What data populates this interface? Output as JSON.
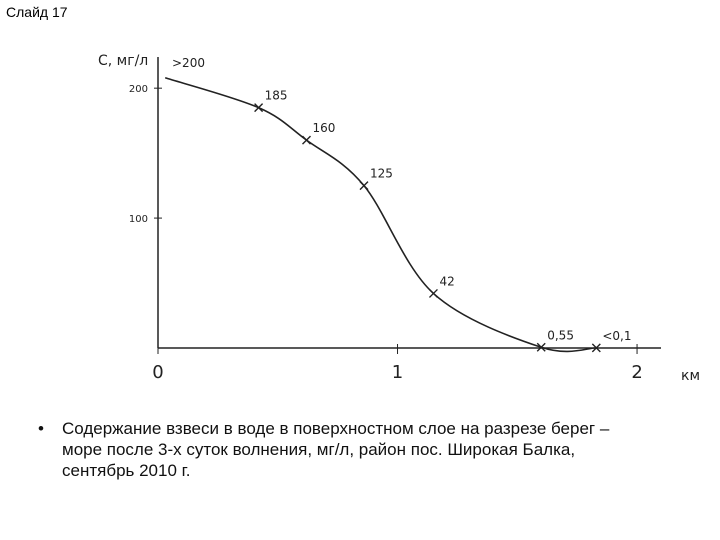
{
  "slide_title": "Слайд 17",
  "chart_data": {
    "type": "line",
    "y_label": "С, мг/л",
    "x_label": "км",
    "y_annotation": ">200",
    "x": [
      0.03,
      0.42,
      0.62,
      0.86,
      1.15,
      1.6,
      1.83
    ],
    "values": [
      208,
      185,
      160,
      125,
      42,
      0.55,
      0.1
    ],
    "value_labels": [
      null,
      "185",
      "160",
      "125",
      "42",
      "0,55",
      "<0,1"
    ],
    "color": "#222222",
    "xlim": [
      0,
      2.1
    ],
    "xticks": [
      0,
      1,
      2
    ],
    "ylim": [
      0,
      224
    ],
    "yticks": [
      100,
      200
    ]
  },
  "caption": "Содержание взвеси в воде в поверхностном слое на разрезе берег – море после 3-х суток волнения, мг/л, район пос. Широкая Балка, сентябрь 2010 г."
}
